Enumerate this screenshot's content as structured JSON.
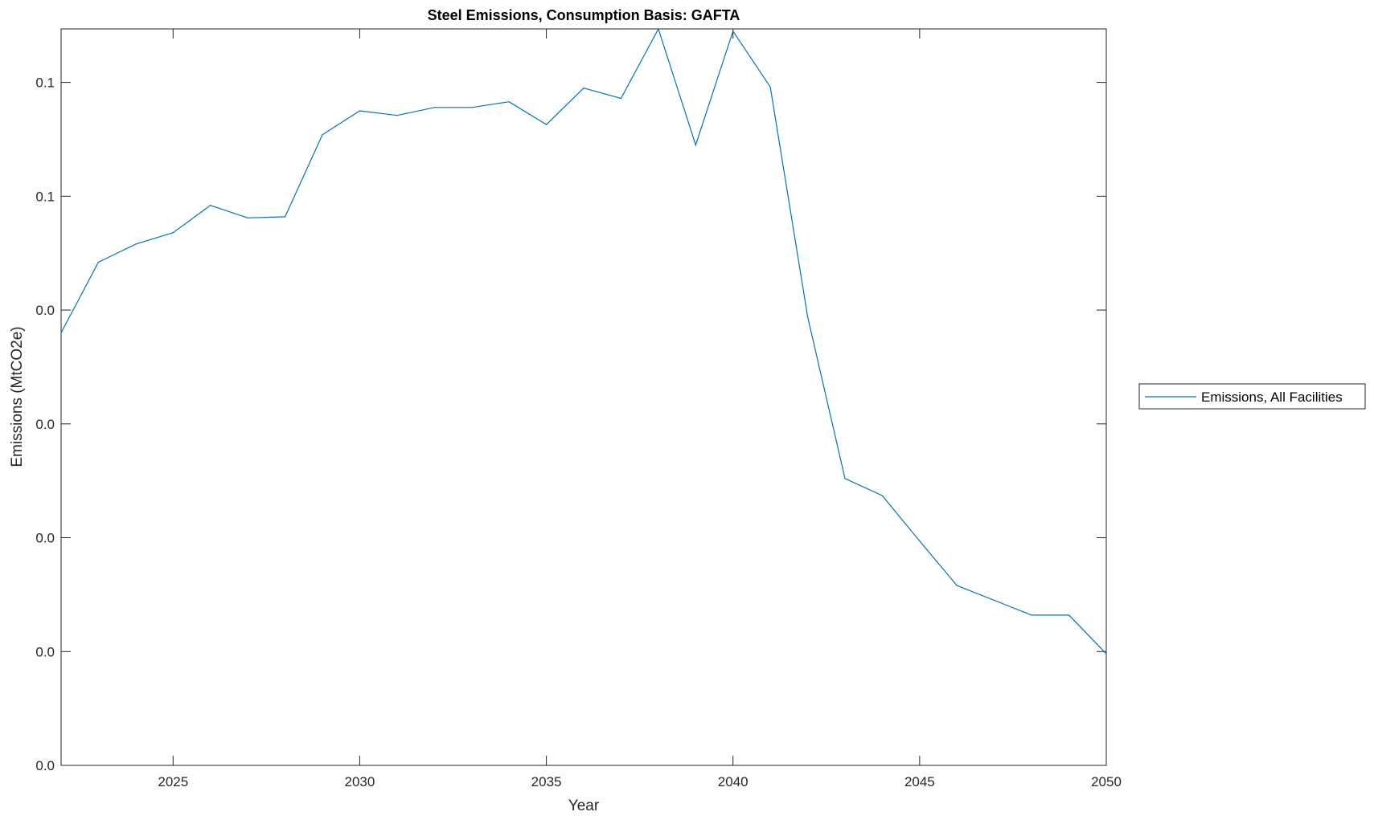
{
  "chart_data": {
    "type": "line",
    "title": "Steel Emissions, Consumption Basis: GAFTA",
    "xlabel": "Year",
    "ylabel": "Emissions (MtCO2e)",
    "xlim": [
      2022,
      2050
    ],
    "ylim": [
      0,
      0.0647
    ],
    "x_ticks": [
      2025,
      2030,
      2035,
      2040,
      2045,
      2050
    ],
    "x_tick_labels": [
      "2025",
      "2030",
      "2035",
      "2040",
      "2045",
      "2050"
    ],
    "y_ticks": [
      0,
      0.01,
      0.02,
      0.03,
      0.04,
      0.05,
      0.06
    ],
    "y_tick_labels": [
      "0.0",
      "0.0",
      "0.0",
      "0.0",
      "0.0",
      "0.1",
      "0.1"
    ],
    "grid": false,
    "legend_position": "outside-right",
    "series": [
      {
        "name": "Emissions, All Facilities",
        "color": "#0072BD",
        "x": [
          2022,
          2023,
          2024,
          2025,
          2026,
          2027,
          2028,
          2029,
          2030,
          2031,
          2032,
          2033,
          2034,
          2035,
          2036,
          2037,
          2038,
          2039,
          2040,
          2041,
          2042,
          2043,
          2044,
          2045,
          2046,
          2047,
          2048,
          2049,
          2050
        ],
        "y": [
          0.038,
          0.0442,
          0.0458,
          0.0468,
          0.0492,
          0.0481,
          0.0482,
          0.0554,
          0.0575,
          0.0571,
          0.0578,
          0.0578,
          0.0583,
          0.0563,
          0.0595,
          0.0586,
          0.0647,
          0.0545,
          0.0645,
          0.0596,
          0.0394,
          0.0252,
          0.0237,
          0.0197,
          0.0158,
          0.0145,
          0.0132,
          0.0132,
          0.0098
        ]
      }
    ]
  }
}
